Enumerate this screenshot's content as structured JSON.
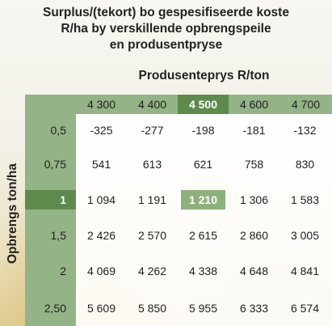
{
  "title": {
    "line1": "Surplus/(tekort) bo gespesifiseerde koste",
    "line2": "R/ha by verskillende opbrengspeile",
    "line3": "en produsentpryse"
  },
  "chart_data": {
    "type": "table",
    "column_header": "Produsenteprys R/ton",
    "row_header": "Opbrengs ton/ha",
    "columns": [
      "4 300",
      "4 400",
      "4 500",
      "4 600",
      "4 700"
    ],
    "rows": [
      "0,5",
      "0,75",
      "1",
      "1,5",
      "2",
      "2,50"
    ],
    "values": [
      [
        "-325",
        "-277",
        "-198",
        "-181",
        "-132"
      ],
      [
        "541",
        "613",
        "621",
        "758",
        "830"
      ],
      [
        "1 094",
        "1 191",
        "1 210",
        "1 306",
        "1 583"
      ],
      [
        "2 426",
        "2 570",
        "2 615",
        "2 860",
        "3 005"
      ],
      [
        "4 069",
        "4 262",
        "4 338",
        "4 648",
        "4 841"
      ],
      [
        "5 609",
        "5 850",
        "5 955",
        "6 333",
        "6 574"
      ]
    ],
    "highlight_column": 2,
    "highlight_row": 2,
    "colors": {
      "header_bg": "#94b386",
      "highlight_dark": "#5e8a4d",
      "highlight_cell": "#8db07c"
    }
  }
}
